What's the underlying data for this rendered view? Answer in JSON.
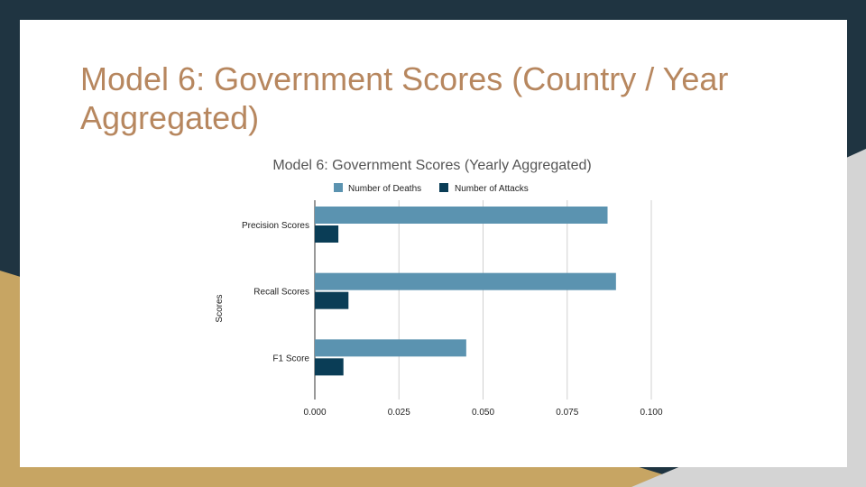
{
  "slide": {
    "title": "Model 6: Government Scores (Country / Year Aggregated)"
  },
  "colors": {
    "background_dark": "#1f3441",
    "background_gold": "#c7a563",
    "background_gray": "#d4d4d4",
    "title_color": "#b7875f",
    "series_deaths": "#5b93b0",
    "series_attacks": "#0a3d56"
  },
  "chart_data": {
    "type": "bar",
    "orientation": "horizontal",
    "title": "Model 6: Government Scores (Yearly Aggregated)",
    "xlabel": "",
    "ylabel": "Scores",
    "categories": [
      "Precision Scores",
      "Recall Scores",
      "F1 Score"
    ],
    "series": [
      {
        "name": "Number of Deaths",
        "values": [
          0.087,
          0.0895,
          0.045
        ]
      },
      {
        "name": "Number of Attacks",
        "values": [
          0.007,
          0.01,
          0.0085
        ]
      }
    ],
    "xlim": [
      0,
      0.1
    ],
    "xticks": [
      "0.000",
      "0.025",
      "0.050",
      "0.075",
      "0.100"
    ],
    "grid": true,
    "legend_position": "top"
  }
}
